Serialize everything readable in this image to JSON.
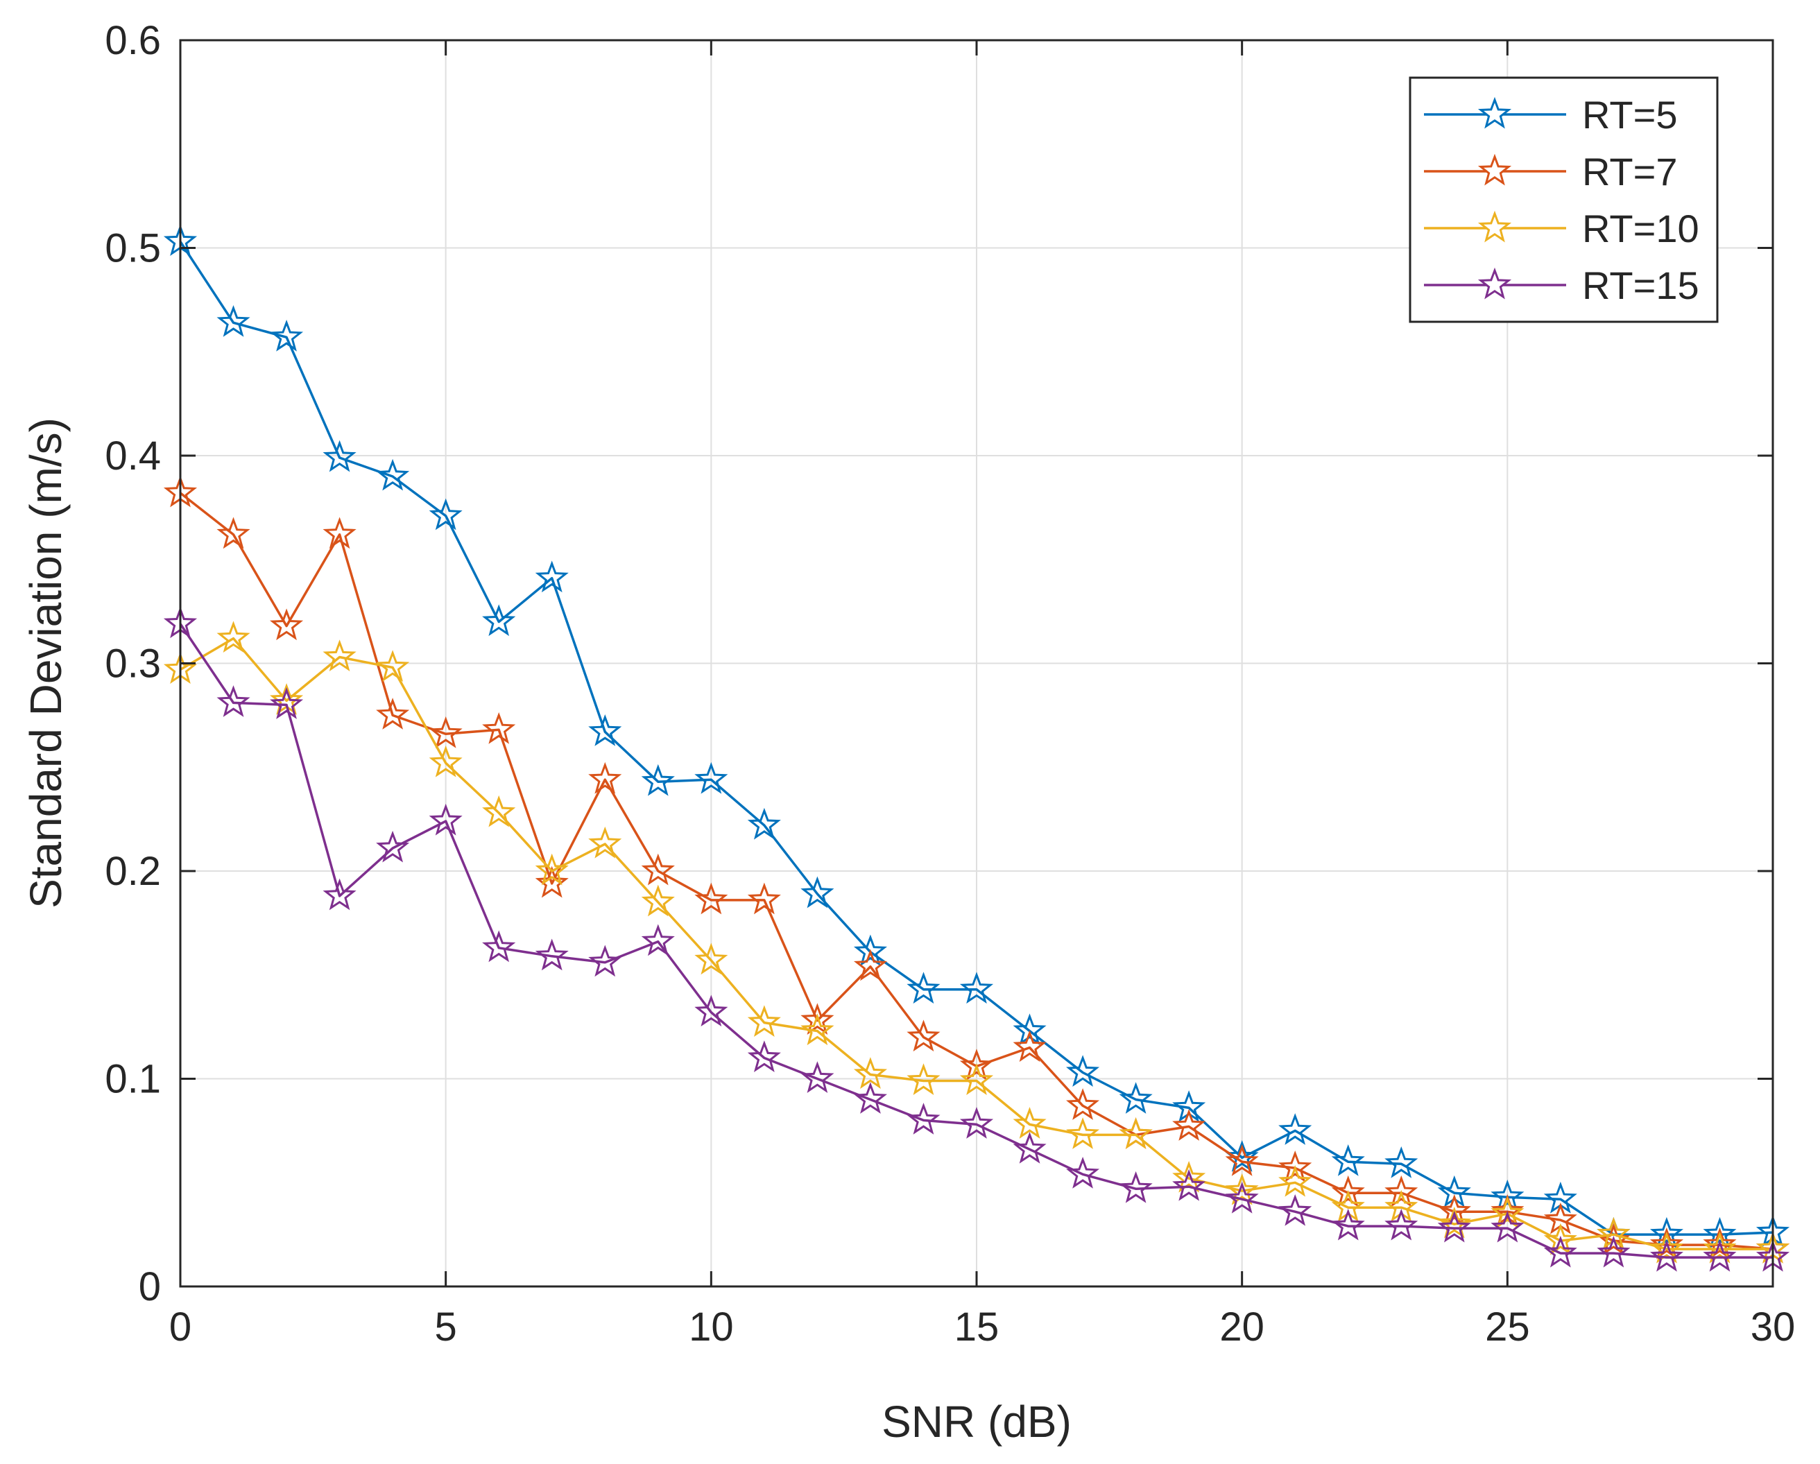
{
  "chart_data": {
    "type": "line",
    "title": "",
    "xlabel": "SNR (dB)",
    "ylabel": "Standard Deviation (m/s)",
    "xlim": [
      0,
      30
    ],
    "ylim": [
      0,
      0.6
    ],
    "xticks": [
      0,
      5,
      10,
      15,
      20,
      25,
      30
    ],
    "xtick_labels": [
      "0",
      "5",
      "10",
      "15",
      "20",
      "25",
      "30"
    ],
    "yticks": [
      0,
      0.1,
      0.2,
      0.3,
      0.4,
      0.5,
      0.6
    ],
    "ytick_labels": [
      "0",
      "0.1",
      "0.2",
      "0.3",
      "0.4",
      "0.5",
      "0.6"
    ],
    "grid": true,
    "legend_position": "top-right",
    "marker": "star",
    "x": [
      0,
      1,
      2,
      3,
      4,
      5,
      6,
      7,
      8,
      9,
      10,
      11,
      12,
      13,
      14,
      15,
      16,
      17,
      18,
      19,
      20,
      21,
      22,
      23,
      24,
      25,
      26,
      27,
      28,
      29,
      30
    ],
    "series": [
      {
        "name": "RT=5",
        "color": "#0072BD",
        "values": [
          0.503,
          0.464,
          0.457,
          0.399,
          0.39,
          0.371,
          0.32,
          0.341,
          0.267,
          0.243,
          0.244,
          0.222,
          0.189,
          0.161,
          0.143,
          0.143,
          0.123,
          0.103,
          0.09,
          0.086,
          0.062,
          0.075,
          0.06,
          0.059,
          0.045,
          0.043,
          0.042,
          0.025,
          0.025,
          0.025,
          0.026
        ]
      },
      {
        "name": "RT=7",
        "color": "#D95319",
        "values": [
          0.382,
          0.362,
          0.318,
          0.362,
          0.275,
          0.266,
          0.268,
          0.194,
          0.244,
          0.2,
          0.186,
          0.186,
          0.128,
          0.154,
          0.12,
          0.106,
          0.115,
          0.087,
          0.073,
          0.077,
          0.06,
          0.057,
          0.045,
          0.045,
          0.036,
          0.036,
          0.032,
          0.022,
          0.02,
          0.02,
          0.018
        ]
      },
      {
        "name": "RT=10",
        "color": "#EDB120",
        "values": [
          0.297,
          0.312,
          0.282,
          0.303,
          0.298,
          0.252,
          0.228,
          0.2,
          0.213,
          0.185,
          0.157,
          0.127,
          0.123,
          0.102,
          0.099,
          0.099,
          0.078,
          0.073,
          0.073,
          0.052,
          0.046,
          0.05,
          0.038,
          0.038,
          0.03,
          0.035,
          0.022,
          0.025,
          0.018,
          0.018,
          0.018
        ]
      },
      {
        "name": "RT=15",
        "color": "#7E2F8E",
        "values": [
          0.319,
          0.281,
          0.28,
          0.188,
          0.211,
          0.224,
          0.163,
          0.159,
          0.156,
          0.166,
          0.132,
          0.11,
          0.1,
          0.09,
          0.08,
          0.078,
          0.066,
          0.054,
          0.047,
          0.048,
          0.042,
          0.036,
          0.029,
          0.029,
          0.028,
          0.028,
          0.016,
          0.016,
          0.014,
          0.014,
          0.014
        ]
      }
    ]
  }
}
